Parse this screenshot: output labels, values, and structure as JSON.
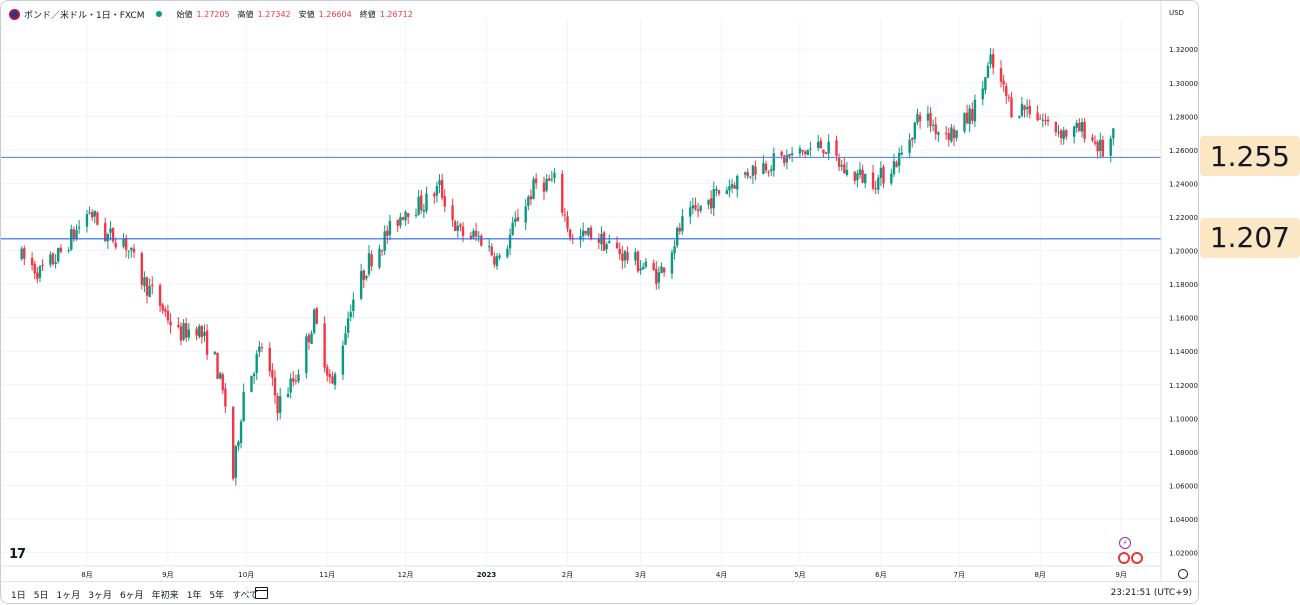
{
  "legend": {
    "symbol": "ポンド／米ドル・1日・FXCM",
    "open_label": "始値",
    "open": "1.27205",
    "high_label": "高値",
    "high": "1.27342",
    "low_label": "安値",
    "low": "1.26604",
    "close_label": "終値",
    "close": "1.26712"
  },
  "currency": "USD",
  "price_ticks": [
    "1.32000",
    "1.30000",
    "1.28000",
    "1.26000",
    "1.24000",
    "1.22000",
    "1.20000",
    "1.18000",
    "1.16000",
    "1.14000",
    "1.12000",
    "1.10000",
    "1.08000",
    "1.06000",
    "1.04000",
    "1.02000"
  ],
  "time_ticks": [
    "8月",
    "9月",
    "10月",
    "11月",
    "12月",
    "2023",
    "2月",
    "3月",
    "4月",
    "5月",
    "6月",
    "7月",
    "8月",
    "9月"
  ],
  "h_lines": [
    {
      "label": "1.255",
      "value": 1.2555,
      "color": "#5b8def",
      "tag": "1.255"
    },
    {
      "label": "1.2070",
      "value": 1.207,
      "color": "#2962ff",
      "tag": "1.207"
    }
  ],
  "ranges": [
    "1日",
    "5日",
    "1ヶ月",
    "3ヶ月",
    "6ヶ月",
    "年初来",
    "1年",
    "5年",
    "すべて"
  ],
  "clock": "23:21:51 (UTC+9)",
  "logo_text": "17",
  "chart_data": {
    "type": "candlestick",
    "title": "",
    "xlabel": "",
    "ylabel": "",
    "ylim": [
      1.012,
      1.338
    ],
    "x_labels_months": [
      "8月",
      "9月",
      "10月",
      "11月",
      "12月",
      "2023",
      "2月",
      "3月",
      "4月",
      "5月",
      "6月",
      "7月",
      "8月",
      "9月"
    ],
    "close_path": [
      {
        "date": "2022-07-07",
        "close": 1.196
      },
      {
        "date": "2022-07-14",
        "close": 1.187
      },
      {
        "date": "2022-07-21",
        "close": 1.197
      },
      {
        "date": "2022-07-28",
        "close": 1.212
      },
      {
        "date": "2022-08-02",
        "close": 1.224
      },
      {
        "date": "2022-08-08",
        "close": 1.209
      },
      {
        "date": "2022-08-15",
        "close": 1.207
      },
      {
        "date": "2022-08-22",
        "close": 1.183
      },
      {
        "date": "2022-08-29",
        "close": 1.168
      },
      {
        "date": "2022-09-05",
        "close": 1.15
      },
      {
        "date": "2022-09-12",
        "close": 1.155
      },
      {
        "date": "2022-09-19",
        "close": 1.135
      },
      {
        "date": "2022-09-23",
        "close": 1.108
      },
      {
        "date": "2022-09-26",
        "close": 1.065
      },
      {
        "date": "2022-09-30",
        "close": 1.116
      },
      {
        "date": "2022-10-07",
        "close": 1.143
      },
      {
        "date": "2022-10-13",
        "close": 1.108
      },
      {
        "date": "2022-10-20",
        "close": 1.125
      },
      {
        "date": "2022-10-27",
        "close": 1.16
      },
      {
        "date": "2022-11-03",
        "close": 1.118
      },
      {
        "date": "2022-11-10",
        "close": 1.168
      },
      {
        "date": "2022-11-17",
        "close": 1.194
      },
      {
        "date": "2022-11-24",
        "close": 1.21
      },
      {
        "date": "2022-12-01",
        "close": 1.225
      },
      {
        "date": "2022-12-08",
        "close": 1.228
      },
      {
        "date": "2022-12-14",
        "close": 1.238
      },
      {
        "date": "2022-12-21",
        "close": 1.211
      },
      {
        "date": "2022-12-30",
        "close": 1.207
      },
      {
        "date": "2023-01-06",
        "close": 1.193
      },
      {
        "date": "2023-01-13",
        "close": 1.22
      },
      {
        "date": "2023-01-20",
        "close": 1.24
      },
      {
        "date": "2023-01-27",
        "close": 1.241
      },
      {
        "date": "2023-02-03",
        "close": 1.205
      },
      {
        "date": "2023-02-10",
        "close": 1.21
      },
      {
        "date": "2023-02-17",
        "close": 1.203
      },
      {
        "date": "2023-02-24",
        "close": 1.196
      },
      {
        "date": "2023-03-08",
        "close": 1.185
      },
      {
        "date": "2023-03-17",
        "close": 1.216
      },
      {
        "date": "2023-03-31",
        "close": 1.235
      },
      {
        "date": "2023-04-14",
        "close": 1.25
      },
      {
        "date": "2023-04-28",
        "close": 1.256
      },
      {
        "date": "2023-05-10",
        "close": 1.263
      },
      {
        "date": "2023-05-19",
        "close": 1.246
      },
      {
        "date": "2023-05-31",
        "close": 1.242
      },
      {
        "date": "2023-06-09",
        "close": 1.257
      },
      {
        "date": "2023-06-16",
        "close": 1.282
      },
      {
        "date": "2023-06-23",
        "close": 1.272
      },
      {
        "date": "2023-06-30",
        "close": 1.27
      },
      {
        "date": "2023-07-07",
        "close": 1.285
      },
      {
        "date": "2023-07-13",
        "close": 1.312
      },
      {
        "date": "2023-07-21",
        "close": 1.285
      },
      {
        "date": "2023-07-28",
        "close": 1.285
      },
      {
        "date": "2023-08-04",
        "close": 1.275
      },
      {
        "date": "2023-08-11",
        "close": 1.27
      },
      {
        "date": "2023-08-18",
        "close": 1.272
      },
      {
        "date": "2023-08-25",
        "close": 1.259
      },
      {
        "date": "2023-08-29",
        "close": 1.267
      }
    ],
    "last": {
      "open": 1.27205,
      "high": 1.27342,
      "low": 1.26604,
      "close": 1.26712
    }
  }
}
